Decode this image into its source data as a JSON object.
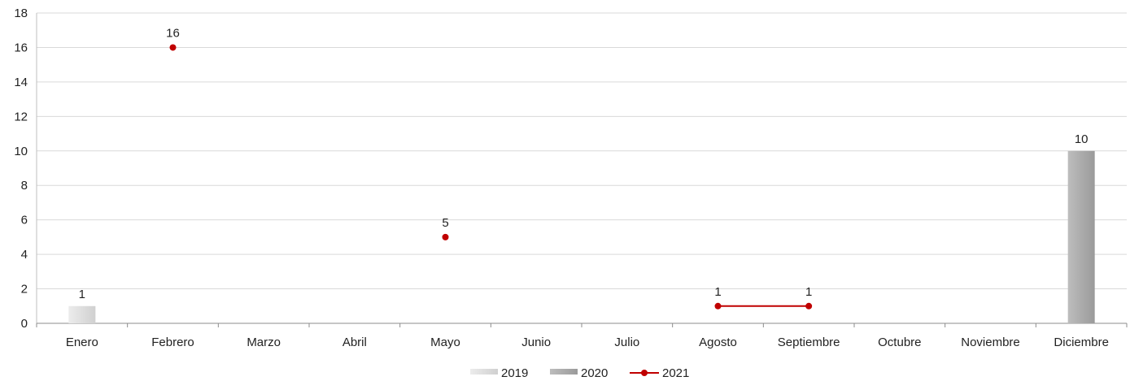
{
  "chart_data": {
    "type": "bar",
    "categories": [
      "Enero",
      "Febrero",
      "Marzo",
      "Abril",
      "Mayo",
      "Junio",
      "Julio",
      "Agosto",
      "Septiembre",
      "Octubre",
      "Noviembre",
      "Diciembre"
    ],
    "ylim": [
      0,
      18
    ],
    "yticks": [
      0,
      2,
      4,
      6,
      8,
      10,
      12,
      14,
      16,
      18
    ],
    "grid": true,
    "legend_position": "bottom",
    "series": [
      {
        "name": "2019",
        "kind": "bar",
        "color": "#d9d9d9",
        "values": [
          1,
          null,
          null,
          null,
          null,
          null,
          null,
          null,
          null,
          null,
          null,
          null
        ]
      },
      {
        "name": "2020",
        "kind": "bar",
        "color": "#a6a6a6",
        "values": [
          null,
          null,
          null,
          null,
          null,
          null,
          null,
          null,
          null,
          null,
          null,
          10
        ]
      },
      {
        "name": "2021",
        "kind": "line",
        "color": "#c00000",
        "values": [
          null,
          16,
          null,
          null,
          5,
          null,
          null,
          1,
          1,
          null,
          null,
          null
        ]
      }
    ]
  }
}
